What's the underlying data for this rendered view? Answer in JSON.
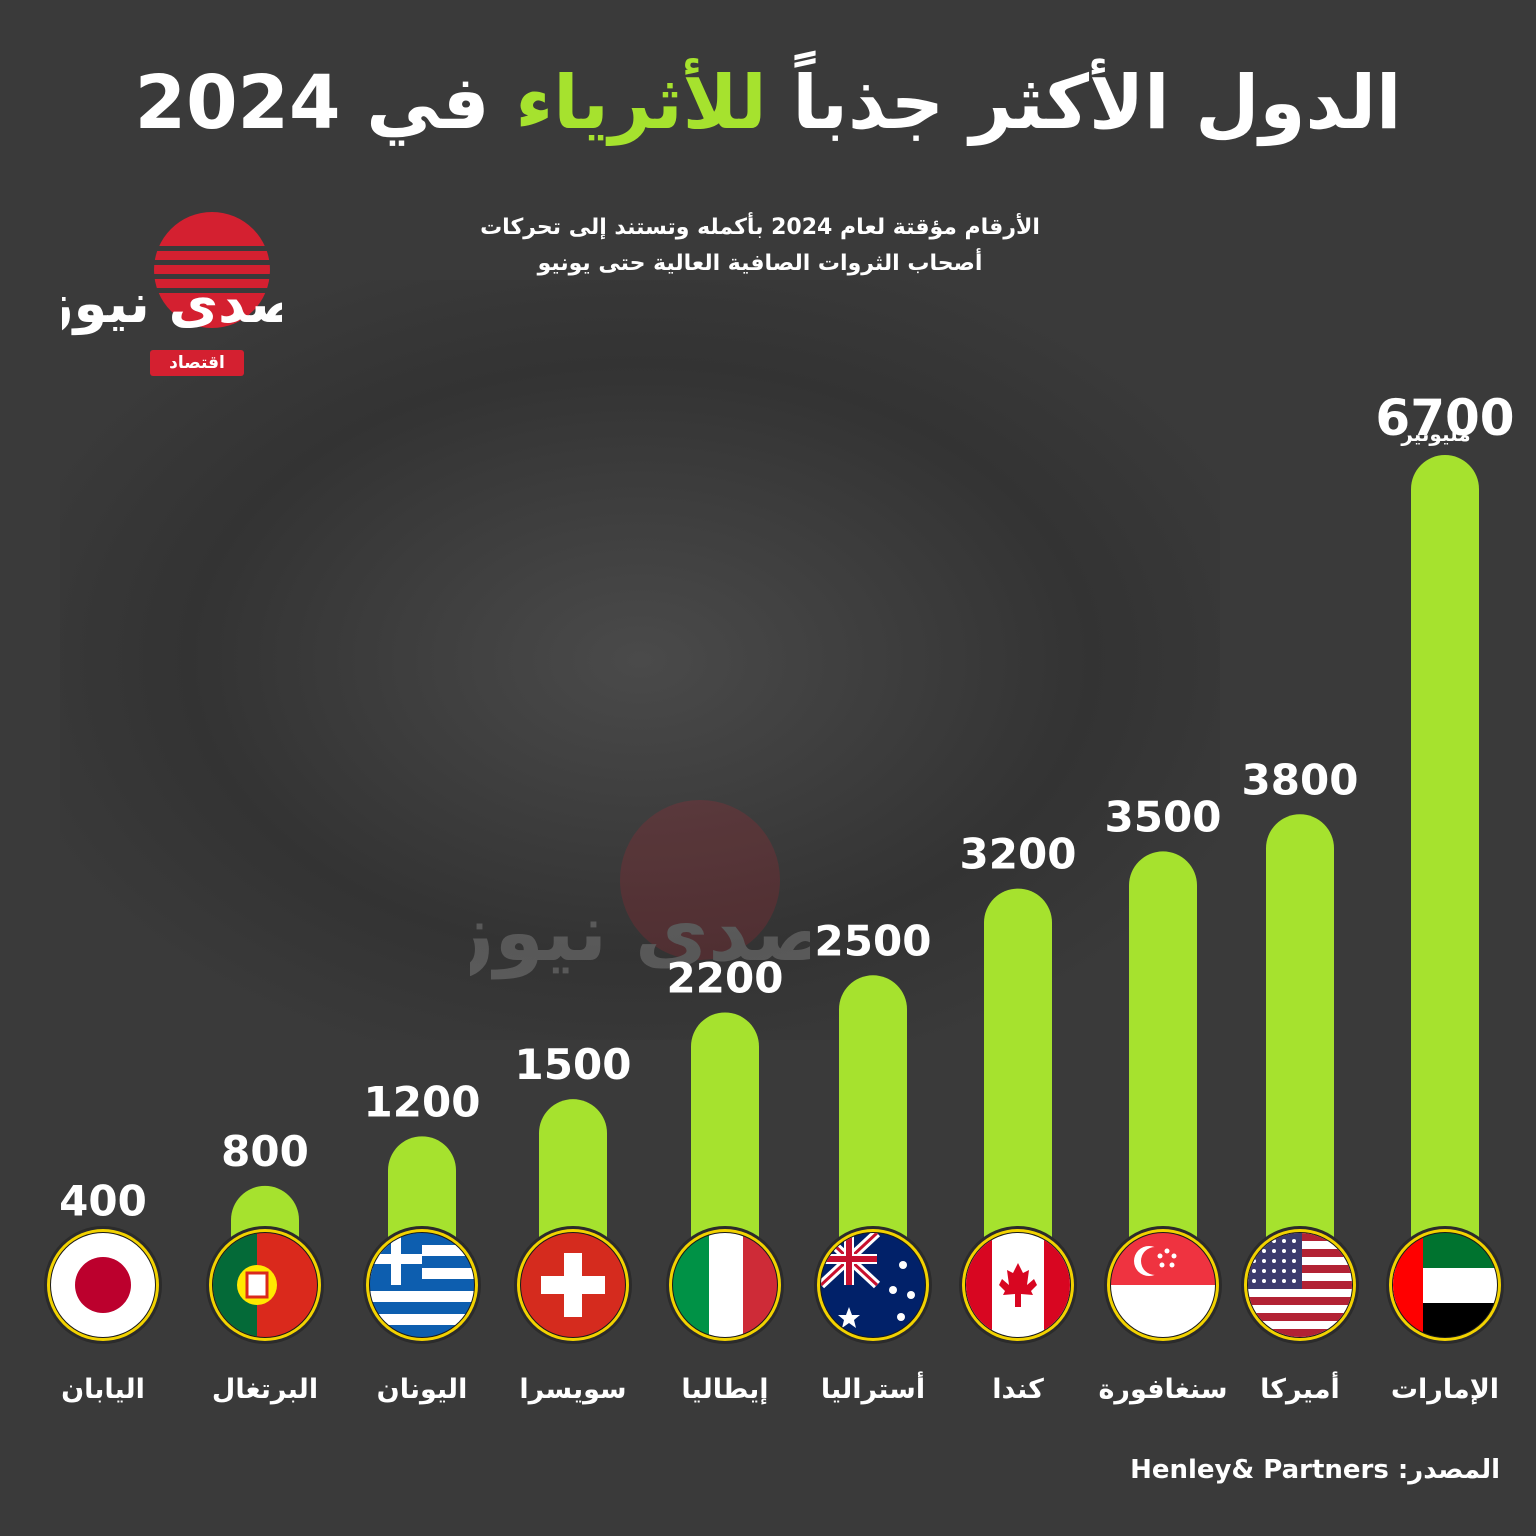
{
  "title": {
    "part1": "الدول الأكثر جذباً",
    "highlight": "للأثرياء",
    "part2": "في 2024"
  },
  "subtitle": {
    "line1": "الأرقام مؤقتة لعام 2024 بأكمله وتستند إلى تحركات",
    "line2": "أصحاب الثروات الصافية العالية حتى يونيو"
  },
  "logo": {
    "text": "صدى نيوز",
    "badge": "اقتصاد"
  },
  "unit_label": "مليونير",
  "source": "المصدر: Henley& Partners",
  "colors": {
    "bar": "#a6e22e",
    "background": "#3a3a3a",
    "title_highlight": "#a6e22e",
    "logo_red": "#d42030"
  },
  "chart_data": {
    "type": "bar",
    "title": "الدول الأكثر جذباً للأثرياء في 2024",
    "ylabel": "مليونير",
    "categories": [
      "اليابان",
      "البرتغال",
      "اليونان",
      "سويسرا",
      "إيطاليا",
      "أستراليا",
      "كندا",
      "سنغافورة",
      "أميركا",
      "الإمارات"
    ],
    "values": [
      400,
      800,
      1200,
      1500,
      2200,
      2500,
      3200,
      3500,
      3800,
      6700
    ],
    "flags": [
      "japan-flag",
      "portugal-flag",
      "greece-flag",
      "switzerland-flag",
      "italy-flag",
      "australia-flag",
      "canada-flag",
      "singapore-flag",
      "usa-flag",
      "uae-flag"
    ],
    "ylim": [
      0,
      6700
    ]
  }
}
